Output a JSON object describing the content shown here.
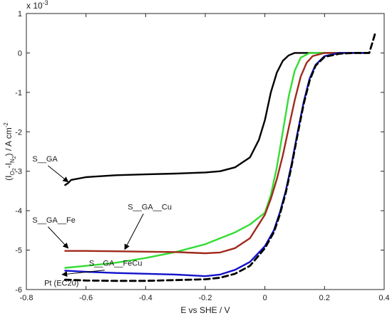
{
  "chart_data": {
    "type": "line",
    "xlabel": "E vs SHE / V",
    "ylabel_parts": {
      "open": "(I",
      "o2_main": "O",
      "o2_sub": "2",
      "minus": "-I",
      "n2_main": "N",
      "n2_sub": "2",
      "close": ") / A cm",
      "sup": "-2"
    },
    "yexponent": {
      "base": "x 10",
      "exp": "-3"
    },
    "xlim": [
      -0.8,
      0.4
    ],
    "ylim": [
      -6,
      1
    ],
    "xticks": [
      -0.8,
      -0.6,
      -0.4,
      -0.2,
      0,
      0.2,
      0.4
    ],
    "xtick_labels": [
      "-0.8",
      "-0.6",
      "-0.4",
      "-0.2",
      "0",
      "0.2",
      "0.4"
    ],
    "yticks": [
      1,
      0,
      -1,
      -2,
      -3,
      -4,
      -5,
      -6
    ],
    "ytick_labels": [
      "1",
      "0",
      "-1",
      "-2",
      "-3",
      "-4",
      "-5",
      "-6"
    ],
    "grid": false,
    "series": [
      {
        "name": "S__GA",
        "color": "#000000",
        "dash": "solid",
        "x": [
          -0.67,
          -0.66,
          -0.65,
          -0.6,
          -0.5,
          -0.4,
          -0.3,
          -0.2,
          -0.15,
          -0.1,
          -0.05,
          -0.02,
          0,
          0.02,
          0.04,
          0.06,
          0.08,
          0.1,
          0.15,
          0.2,
          0.25,
          0.3,
          0.35
        ],
        "y": [
          -3.35,
          -3.3,
          -3.22,
          -3.15,
          -3.1,
          -3.08,
          -3.06,
          -3.03,
          -3.0,
          -2.9,
          -2.65,
          -2.2,
          -1.7,
          -1.0,
          -0.5,
          -0.2,
          -0.06,
          0,
          0,
          0,
          0,
          0,
          0
        ]
      },
      {
        "name": "S__GA__Cu",
        "color": "#33dd33",
        "dash": "solid",
        "x": [
          -0.67,
          -0.6,
          -0.5,
          -0.4,
          -0.3,
          -0.2,
          -0.1,
          -0.05,
          0,
          0.02,
          0.04,
          0.06,
          0.08,
          0.1,
          0.12,
          0.15,
          0.2,
          0.25,
          0.3,
          0.35
        ],
        "y": [
          -5.45,
          -5.4,
          -5.32,
          -5.2,
          -5.05,
          -4.85,
          -4.55,
          -4.35,
          -4.05,
          -3.6,
          -2.9,
          -2.0,
          -1.1,
          -0.45,
          -0.12,
          0,
          0,
          0,
          0,
          0
        ]
      },
      {
        "name": "S__GA__Fe",
        "color": "#a02a1c",
        "dash": "solid",
        "x": [
          -0.67,
          -0.6,
          -0.5,
          -0.4,
          -0.3,
          -0.2,
          -0.15,
          -0.1,
          -0.05,
          0,
          0.02,
          0.04,
          0.06,
          0.08,
          0.1,
          0.12,
          0.14,
          0.16,
          0.2,
          0.25,
          0.3,
          0.35
        ],
        "y": [
          -5.02,
          -5.02,
          -5.03,
          -5.04,
          -5.05,
          -5.08,
          -5.06,
          -4.95,
          -4.7,
          -4.1,
          -3.7,
          -3.2,
          -2.6,
          -1.9,
          -1.2,
          -0.6,
          -0.25,
          -0.08,
          0,
          0,
          0,
          0
        ]
      },
      {
        "name": "S__GA__FeCu",
        "color": "#1111cc",
        "dash": "solid",
        "x": [
          -0.67,
          -0.6,
          -0.5,
          -0.4,
          -0.3,
          -0.2,
          -0.15,
          -0.1,
          -0.05,
          0,
          0.03,
          0.05,
          0.07,
          0.09,
          0.11,
          0.13,
          0.15,
          0.17,
          0.2,
          0.25,
          0.3,
          0.35
        ],
        "y": [
          -5.52,
          -5.55,
          -5.58,
          -5.6,
          -5.62,
          -5.66,
          -5.62,
          -5.5,
          -5.3,
          -4.9,
          -4.5,
          -4.05,
          -3.5,
          -2.8,
          -2.0,
          -1.25,
          -0.65,
          -0.3,
          -0.08,
          0,
          0,
          0
        ]
      },
      {
        "name": "Pt (EC20)",
        "color": "#000000",
        "dash": "dashed",
        "x": [
          -0.67,
          -0.6,
          -0.5,
          -0.4,
          -0.3,
          -0.2,
          -0.15,
          -0.1,
          -0.05,
          0,
          0.03,
          0.05,
          0.07,
          0.09,
          0.11,
          0.13,
          0.15,
          0.17,
          0.2,
          0.25,
          0.3,
          0.35,
          0.36,
          0.37
        ],
        "y": [
          -5.75,
          -5.77,
          -5.78,
          -5.78,
          -5.76,
          -5.74,
          -5.7,
          -5.6,
          -5.4,
          -4.95,
          -4.55,
          -4.1,
          -3.55,
          -2.85,
          -2.05,
          -1.3,
          -0.7,
          -0.32,
          -0.1,
          -0.02,
          0,
          0,
          0.25,
          0.5
        ]
      }
    ],
    "annotations": [
      {
        "text": "S__GA",
        "tx": -0.78,
        "ty": -2.75,
        "ax": -0.66,
        "ay": -3.27
      },
      {
        "text": "S__GA__Fe",
        "tx": -0.78,
        "ty": -4.3,
        "ax": -0.66,
        "ay": -4.95
      },
      {
        "text": "S__GA__Cu",
        "tx": -0.46,
        "ty": -3.97,
        "ax": -0.47,
        "ay": -4.98
      },
      {
        "text": "S__GA__FeCu",
        "tx": -0.59,
        "ty": -5.4,
        "ax": -0.68,
        "ay": -5.62
      },
      {
        "text": "Pt (EC20)",
        "tx": -0.74,
        "ty": -5.9,
        "ax": null,
        "ay": null
      }
    ]
  }
}
